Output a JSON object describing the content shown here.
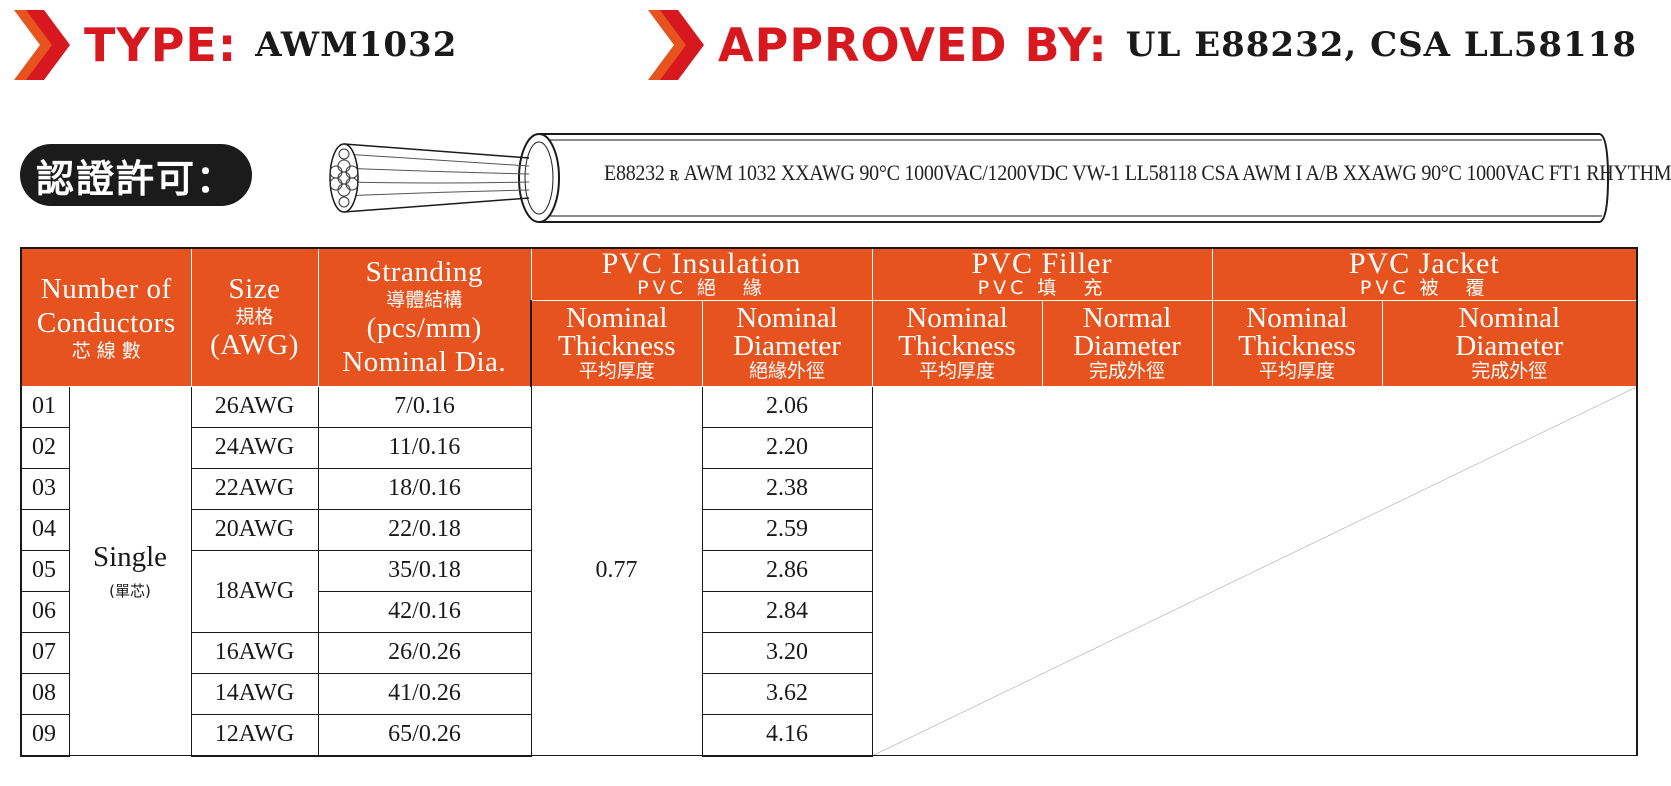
{
  "header": {
    "type_key": "TYPE:",
    "type_value": "AWM1032",
    "approved_key": "APPROVED BY:",
    "approved_value": "UL E88232, CSA LL58118"
  },
  "approval_badge": "認證許可：",
  "cable_marking": "E88232 ꭱ AWM 1032 XXAWG 90°C 1000VAC/1200VDC VW-1 LL58118 CSA AWM I A/B XXAWG  90°C  1000VAC FT1 RHYTHM",
  "colors": {
    "accent_red": "#d7181f",
    "table_header": "#e6531f"
  },
  "table": {
    "headers": {
      "conductors": {
        "en1": "Number of",
        "en2": "Conductors",
        "cn": "芯 線 數"
      },
      "size": {
        "en": "Size",
        "cn": "規格",
        "unit": "(AWG)"
      },
      "stranding": {
        "en": "Stranding",
        "cn": "導體結構",
        "unit": "(pcs/mm)",
        "sub": "Nominal Dia."
      },
      "insulation": {
        "en": "PVC  Insulation",
        "cn": "PVC 絕　緣"
      },
      "filler": {
        "en": "PVC  Filler",
        "cn": "PVC 填　充"
      },
      "jacket": {
        "en": "PVC  Jacket",
        "cn": "PVC 被　覆"
      },
      "ins_thick": {
        "en1": "Nominal",
        "en2": "Thickness",
        "cn": "平均厚度"
      },
      "ins_dia": {
        "en1": "Nominal",
        "en2": "Diameter",
        "cn": "絕緣外徑"
      },
      "fil_thick": {
        "en1": "Nominal",
        "en2": "Thickness",
        "cn": "平均厚度"
      },
      "fil_dia": {
        "en1": "Normal",
        "en2": "Diameter",
        "cn": "完成外徑"
      },
      "jac_thick": {
        "en1": "Nominal",
        "en2": "Thickness",
        "cn": "平均厚度"
      },
      "jac_dia": {
        "en1": "Nominal",
        "en2": "Diameter",
        "cn": "完成外徑"
      }
    },
    "conductor_type": {
      "en": "Single",
      "cn": "(單芯)"
    },
    "insulation_thickness": "0.77",
    "rows": [
      {
        "no": "01",
        "size": "26AWG",
        "stranding": "7/0.16",
        "diameter": "2.06"
      },
      {
        "no": "02",
        "size": "24AWG",
        "stranding": "11/0.16",
        "diameter": "2.20"
      },
      {
        "no": "03",
        "size": "22AWG",
        "stranding": "18/0.16",
        "diameter": "2.38"
      },
      {
        "no": "04",
        "size": "20AWG",
        "stranding": "22/0.18",
        "diameter": "2.59"
      },
      {
        "no": "05",
        "size": "18AWG",
        "stranding": "35/0.18",
        "diameter": "2.86"
      },
      {
        "no": "06",
        "size": "",
        "stranding": "42/0.16",
        "diameter": "2.84"
      },
      {
        "no": "07",
        "size": "16AWG",
        "stranding": "26/0.26",
        "diameter": "3.20"
      },
      {
        "no": "08",
        "size": "14AWG",
        "stranding": "41/0.26",
        "diameter": "3.62"
      },
      {
        "no": "09",
        "size": "12AWG",
        "stranding": "65/0.26",
        "diameter": "4.16"
      }
    ]
  }
}
